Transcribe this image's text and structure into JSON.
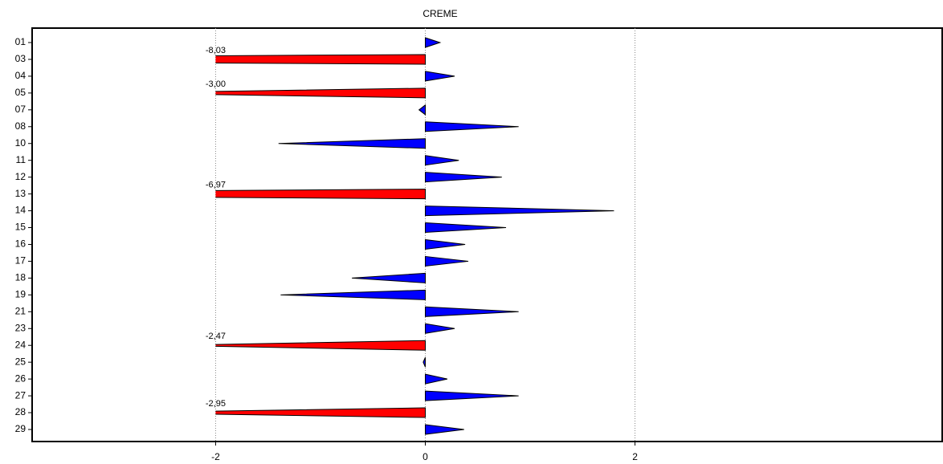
{
  "chart_data": {
    "type": "triangle_bar",
    "title": "CREME",
    "categories": [
      "01",
      "03",
      "04",
      "05",
      "07",
      "08",
      "10",
      "11",
      "12",
      "13",
      "14",
      "15",
      "16",
      "17",
      "18",
      "19",
      "21",
      "23",
      "24",
      "25",
      "26",
      "27",
      "28",
      "29"
    ],
    "values": [
      0.14,
      -8.03,
      0.28,
      -3.0,
      -0.06,
      0.89,
      -1.4,
      0.32,
      0.73,
      -6.97,
      1.8,
      0.77,
      0.38,
      0.41,
      -0.7,
      -1.38,
      0.89,
      0.28,
      -2.47,
      -0.02,
      0.21,
      0.89,
      -2.95,
      0.37
    ],
    "value_labels": [
      null,
      "-8,03",
      null,
      "-3,00",
      null,
      null,
      null,
      null,
      null,
      "-6,97",
      null,
      null,
      null,
      null,
      null,
      null,
      null,
      null,
      "-2,47",
      null,
      null,
      null,
      "-2,95",
      null
    ],
    "color": "#0000ff",
    "overflow_color": "#ff0000",
    "xlim": [
      -3.75,
      4.93
    ],
    "xticks": [
      -2,
      0,
      2
    ],
    "grid": true
  }
}
